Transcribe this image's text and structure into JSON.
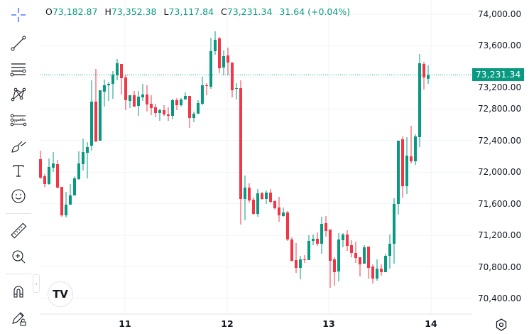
{
  "legend": {
    "open_label": "O",
    "open": "73,182.87",
    "high_label": "H",
    "high": "73,352.38",
    "low_label": "L",
    "low": "73,117.84",
    "close_label": "C",
    "close": "73,231.34",
    "change": "31.64 (+0.04%)"
  },
  "current_price_label": "73,231.34",
  "toolbar": [
    {
      "name": "crosshair-icon"
    },
    {
      "name": "trend-line-icon"
    },
    {
      "name": "horizontal-lines-icon"
    },
    {
      "name": "pattern-icon"
    },
    {
      "name": "fib-retracement-icon"
    },
    {
      "name": "brush-icon"
    },
    {
      "name": "text-icon"
    },
    {
      "name": "emoji-icon"
    },
    {
      "name": "ruler-icon"
    },
    {
      "name": "zoom-in-icon"
    },
    {
      "name": "magnet-icon"
    },
    {
      "name": "lock-drawings-icon"
    }
  ],
  "logo_text": "TV",
  "colors": {
    "up": "#089981",
    "down": "#f23645",
    "crosshair": "#2962ff",
    "grid": "#f0f3fa"
  },
  "chart_data": {
    "type": "candlestick",
    "y_axis": {
      "range": [
        70400,
        74000
      ],
      "ticks": [
        "74,000.00",
        "73,600.00",
        "73,200.00",
        "72,800.00",
        "72,400.00",
        "72,000.00",
        "71,600.00",
        "71,200.00",
        "70,800.00",
        "70,400.00"
      ],
      "position": "right"
    },
    "x_axis": {
      "ticks": [
        "11",
        "12",
        "13",
        "14"
      ],
      "interval": "1 hour"
    },
    "grid": true,
    "last_price": 73231.34,
    "candles": [
      [
        72164,
        72272,
        71912,
        71930
      ],
      [
        71948,
        71975,
        71813,
        71849
      ],
      [
        71849,
        72173,
        71840,
        72065
      ],
      [
        72056,
        72254,
        72002,
        72110
      ],
      [
        72101,
        72155,
        71795,
        71804
      ],
      [
        71813,
        71813,
        71435,
        71453
      ],
      [
        71453,
        71750,
        71426,
        71588
      ],
      [
        71588,
        71849,
        71588,
        71705
      ],
      [
        71705,
        71948,
        71723,
        71921
      ],
      [
        71912,
        72263,
        71903,
        72110
      ],
      [
        72101,
        72425,
        72020,
        72254
      ],
      [
        72245,
        72380,
        71921,
        72317
      ],
      [
        72335,
        73163,
        72272,
        72893
      ],
      [
        72893,
        73307,
        72380,
        72389
      ],
      [
        72398,
        73037,
        72398,
        73037
      ],
      [
        73019,
        73172,
        72830,
        73100
      ],
      [
        73100,
        73145,
        72902,
        73118
      ],
      [
        73118,
        73280,
        72929,
        73235
      ],
      [
        73226,
        73433,
        73163,
        73379
      ],
      [
        73370,
        73370,
        72983,
        73190
      ],
      [
        73199,
        73235,
        72785,
        72911
      ],
      [
        72902,
        72974,
        72812,
        72974
      ],
      [
        72974,
        73028,
        72830,
        72830
      ],
      [
        72839,
        73028,
        72713,
        72956
      ],
      [
        72947,
        73118,
        72902,
        72983
      ],
      [
        72983,
        73100,
        72767,
        72857
      ],
      [
        72866,
        72974,
        72722,
        72812
      ],
      [
        72821,
        72866,
        72695,
        72749
      ],
      [
        72749,
        72803,
        72650,
        72785
      ],
      [
        72785,
        72848,
        72713,
        72731
      ],
      [
        72731,
        72821,
        72650,
        72713
      ],
      [
        72713,
        72929,
        72668,
        72911
      ],
      [
        72911,
        72938,
        72785,
        72848
      ],
      [
        72848,
        72938,
        72830,
        72920
      ],
      [
        72920,
        73010,
        72920,
        72965
      ],
      [
        72965,
        72965,
        72560,
        72686
      ],
      [
        72686,
        72767,
        72632,
        72740
      ],
      [
        72740,
        72911,
        72740,
        72875
      ],
      [
        72866,
        73208,
        72848,
        73100
      ],
      [
        73100,
        73127,
        72974,
        73091
      ],
      [
        73082,
        73703,
        73055,
        73532
      ],
      [
        73532,
        73784,
        73487,
        73676
      ],
      [
        73694,
        73712,
        73253,
        73316
      ],
      [
        73325,
        73541,
        73226,
        73469
      ],
      [
        73478,
        73577,
        73226,
        73388
      ],
      [
        73388,
        73388,
        72947,
        73037
      ],
      [
        73055,
        73127,
        72920,
        73064
      ],
      [
        73064,
        73163,
        71336,
        71660
      ],
      [
        71660,
        71957,
        71390,
        71804
      ],
      [
        71804,
        71858,
        71615,
        71642
      ],
      [
        71651,
        71678,
        71462,
        71471
      ],
      [
        71471,
        71786,
        71435,
        71732
      ],
      [
        71732,
        71750,
        71651,
        71660
      ],
      [
        71660,
        71768,
        71597,
        71741
      ],
      [
        71741,
        71786,
        71606,
        71624
      ],
      [
        71633,
        71642,
        71525,
        71543
      ],
      [
        71552,
        71687,
        71372,
        71453
      ],
      [
        71444,
        71552,
        71435,
        71489
      ],
      [
        71489,
        71507,
        71129,
        71147
      ],
      [
        71147,
        71174,
        70868,
        70877
      ],
      [
        70886,
        71102,
        70724,
        70787
      ],
      [
        70787,
        70940,
        70643,
        70895
      ],
      [
        70895,
        70949,
        70850,
        70886
      ],
      [
        70886,
        71201,
        70886,
        71129
      ],
      [
        71129,
        71210,
        71075,
        71156
      ],
      [
        71156,
        71237,
        71066,
        71093
      ],
      [
        71093,
        71435,
        70967,
        71345
      ],
      [
        71354,
        71444,
        71183,
        71255
      ],
      [
        71273,
        71273,
        70535,
        70877
      ],
      [
        70895,
        70922,
        70562,
        70733
      ],
      [
        70742,
        71228,
        70616,
        71147
      ],
      [
        71138,
        71228,
        71048,
        71210
      ],
      [
        71210,
        71264,
        71003,
        71066
      ],
      [
        71075,
        71138,
        70922,
        70976
      ],
      [
        70976,
        71120,
        70850,
        70913
      ],
      [
        70922,
        70922,
        70679,
        70832
      ],
      [
        70841,
        71075,
        70841,
        71048
      ],
      [
        71057,
        71057,
        70652,
        70787
      ],
      [
        70805,
        70832,
        70589,
        70652
      ],
      [
        70652,
        70895,
        70625,
        70778
      ],
      [
        70778,
        70832,
        70688,
        70733
      ],
      [
        70733,
        70967,
        70733,
        70940
      ],
      [
        70940,
        71210,
        70778,
        71093
      ],
      [
        71093,
        71669,
        70841,
        71597
      ],
      [
        71597,
        72398,
        71462,
        72398
      ],
      [
        72416,
        72452,
        71678,
        71822
      ],
      [
        71822,
        72443,
        71723,
        72209
      ],
      [
        72200,
        72587,
        72110,
        72137
      ],
      [
        72137,
        72479,
        72092,
        72452
      ],
      [
        72443,
        73496,
        72317,
        73379
      ],
      [
        73370,
        73397,
        73046,
        73199
      ],
      [
        73182.87,
        73352.38,
        73117.84,
        73231.34
      ]
    ],
    "candle_format": [
      "open",
      "high",
      "low",
      "close"
    ]
  }
}
